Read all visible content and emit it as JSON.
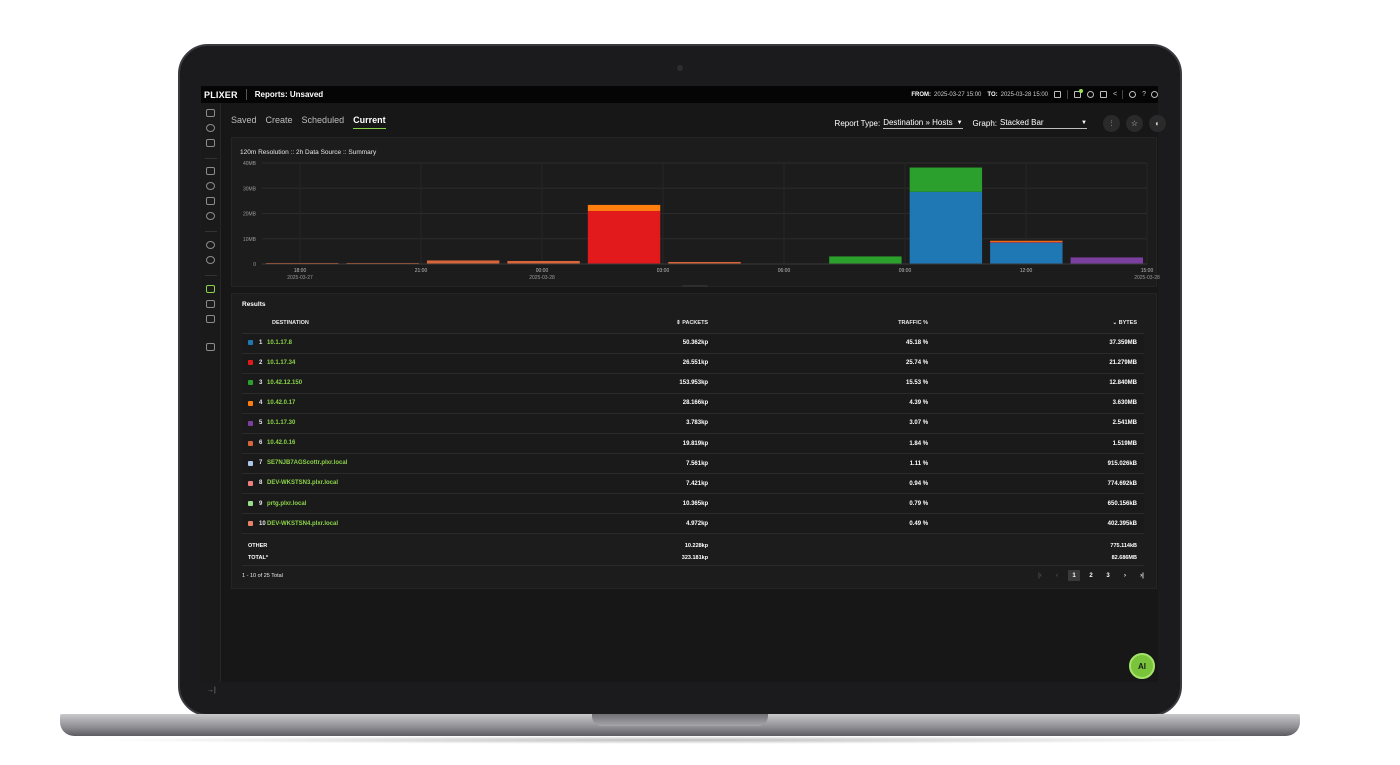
{
  "app": {
    "logo": "PLIXER",
    "title": "Reports: Unsaved"
  },
  "topbar": {
    "from_label": "FROM:",
    "from_value": "2025-03-27 15:00",
    "to_label": "TO:",
    "to_value": "2025-03-28 15:00",
    "icons": [
      "calendar-icon",
      "filter-icon",
      "settings-icon",
      "save-icon",
      "share-icon",
      "search-icon",
      "help-icon",
      "user-icon"
    ],
    "help_glyph": "?"
  },
  "tabs": [
    "Saved",
    "Create",
    "Scheduled",
    "Current"
  ],
  "active_tab": "Current",
  "controls": {
    "report_type_label": "Report Type:",
    "report_type_value": "Destination » Hosts",
    "graph_label": "Graph:",
    "graph_value": "Stacked Bar"
  },
  "chart_data": {
    "type": "bar",
    "stacked": true,
    "title": "120m Resolution :: 2h Data Source :: Summary",
    "yticks": [
      "0",
      "10MB",
      "20MB",
      "30MB",
      "40MB"
    ],
    "ylim": [
      0,
      40
    ],
    "yunit": "MB",
    "xticks": [
      {
        "t": "18:00",
        "d": "2025-03-27"
      },
      {
        "t": "21:00",
        "d": ""
      },
      {
        "t": "00:00",
        "d": "2025-03-28"
      },
      {
        "t": "03:00",
        "d": ""
      },
      {
        "t": "06:00",
        "d": ""
      },
      {
        "t": "09:00",
        "d": ""
      },
      {
        "t": "12:00",
        "d": ""
      },
      {
        "t": "15:00",
        "d": "2025-03-28"
      }
    ],
    "grid": true,
    "series": [
      {
        "name": "10.1.17.8",
        "color": "#1f77b4",
        "values": [
          0,
          0,
          0,
          0,
          0,
          0,
          0,
          0,
          28.6,
          8.6,
          0
        ]
      },
      {
        "name": "10.1.17.34",
        "color": "#e31a1c",
        "values": [
          0,
          0,
          0,
          0,
          21.0,
          0,
          0,
          0,
          0,
          0.3,
          0
        ]
      },
      {
        "name": "10.42.12.150",
        "color": "#2ca02c",
        "values": [
          0,
          0,
          0,
          0,
          0,
          0,
          0,
          3.0,
          9.6,
          0,
          0
        ]
      },
      {
        "name": "10.42.0.17",
        "color": "#ff7f0e",
        "values": [
          0,
          0,
          0.2,
          0.2,
          2.4,
          0,
          0,
          0,
          0,
          0.3,
          0
        ]
      },
      {
        "name": "10.1.17.30",
        "color": "#7b3fa0",
        "values": [
          0,
          0,
          0,
          0,
          0,
          0,
          0,
          0,
          0,
          0,
          2.6
        ]
      },
      {
        "name": "10.42.0.16",
        "color": "#d9653b",
        "values": [
          0.4,
          0.4,
          1.2,
          1.0,
          0,
          0.8,
          0.2,
          0,
          0,
          0,
          0
        ]
      }
    ]
  },
  "results": {
    "title": "Results",
    "headers": {
      "destination": "DESTINATION",
      "packets": "⇕ PACKETS",
      "traffic": "TRAFFIC %",
      "bytes": "⌄ BYTES"
    },
    "rows": [
      {
        "rank": "1",
        "host": "10.1.17.8",
        "color": "#1f77b4",
        "packets": "50.362kp",
        "traffic": "45.18 %",
        "bytes": "37.359MB"
      },
      {
        "rank": "2",
        "host": "10.1.17.34",
        "color": "#e31a1c",
        "packets": "26.551kp",
        "traffic": "25.74 %",
        "bytes": "21.279MB"
      },
      {
        "rank": "3",
        "host": "10.42.12.150",
        "color": "#2ca02c",
        "packets": "153.953kp",
        "traffic": "15.53 %",
        "bytes": "12.840MB"
      },
      {
        "rank": "4",
        "host": "10.42.0.17",
        "color": "#ff7f0e",
        "packets": "28.166kp",
        "traffic": "4.39 %",
        "bytes": "3.630MB"
      },
      {
        "rank": "5",
        "host": "10.1.17.30",
        "color": "#7b3fa0",
        "packets": "3.783kp",
        "traffic": "3.07 %",
        "bytes": "2.541MB"
      },
      {
        "rank": "6",
        "host": "10.42.0.16",
        "color": "#d9653b",
        "packets": "19.819kp",
        "traffic": "1.84 %",
        "bytes": "1.519MB"
      },
      {
        "rank": "7",
        "host": "SE7NJB7AGScottr.plxr.local",
        "color": "#aec7e8",
        "packets": "7.561kp",
        "traffic": "1.11 %",
        "bytes": "915.026kB"
      },
      {
        "rank": "8",
        "host": "DEV-WKSTSN3.plxr.local",
        "color": "#f08080",
        "packets": "7.421kp",
        "traffic": "0.94 %",
        "bytes": "774.692kB"
      },
      {
        "rank": "9",
        "host": "prtg.plxr.local",
        "color": "#98df8a",
        "packets": "10.365kp",
        "traffic": "0.79 %",
        "bytes": "650.156kB"
      },
      {
        "rank": "10",
        "host": "DEV-WKSTSN4.plxr.local",
        "color": "#e8826a",
        "packets": "4.972kp",
        "traffic": "0.49 %",
        "bytes": "402.395kB"
      }
    ],
    "other": {
      "label": "OTHER",
      "packets": "10.228kp",
      "bytes": "775.114kB"
    },
    "total": {
      "label": "TOTAL*",
      "packets": "323.181kp",
      "bytes": "82.686MB"
    },
    "pagination": {
      "info": "1 - 10 of 25 Total",
      "pages": [
        "1",
        "2",
        "3"
      ],
      "current": "1"
    }
  },
  "ai_button": {
    "label": "AI"
  }
}
